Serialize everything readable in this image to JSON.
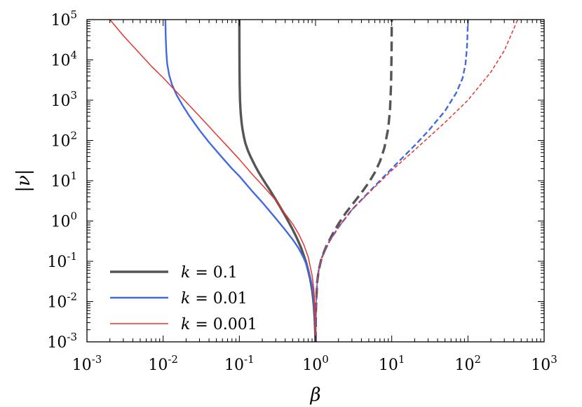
{
  "chart_data": {
    "type": "line",
    "title": "",
    "xlabel": "β",
    "ylabel": "|ν|",
    "xscale": "log",
    "yscale": "log",
    "xlim": [
      0.001,
      1000
    ],
    "ylim": [
      0.001,
      100000
    ],
    "x_ticks": [
      {
        "base": "10",
        "exp": "-3"
      },
      {
        "base": "10",
        "exp": "-2"
      },
      {
        "base": "10",
        "exp": "-1"
      },
      {
        "base": "10",
        "exp": "0"
      },
      {
        "base": "10",
        "exp": "1"
      },
      {
        "base": "10",
        "exp": "2"
      },
      {
        "base": "10",
        "exp": "3"
      }
    ],
    "y_ticks": [
      {
        "base": "10",
        "exp": "-3"
      },
      {
        "base": "10",
        "exp": "-2"
      },
      {
        "base": "10",
        "exp": "-1"
      },
      {
        "base": "10",
        "exp": "0"
      },
      {
        "base": "10",
        "exp": "1"
      },
      {
        "base": "10",
        "exp": "2"
      },
      {
        "base": "10",
        "exp": "3"
      },
      {
        "base": "10",
        "exp": "4"
      },
      {
        "base": "10",
        "exp": "5"
      }
    ],
    "grid": false,
    "legend_position": "bottom-left",
    "series": [
      {
        "name": "k = 0.1",
        "legend": {
          "var": "k",
          "rest": " = 0.1"
        },
        "color": "#555555",
        "solid": {
          "x": [
            0.1,
            0.1002,
            0.1005,
            0.101,
            0.102,
            0.104,
            0.107,
            0.11,
            0.115,
            0.12,
            0.13,
            0.14,
            0.16,
            0.18,
            0.2,
            0.23,
            0.26,
            0.3,
            0.35,
            0.4,
            0.45,
            0.5,
            0.55,
            0.6,
            0.65,
            0.7,
            0.75,
            0.8,
            0.85,
            0.9,
            0.93,
            0.95,
            0.97,
            0.98,
            0.99,
            0.995,
            0.999
          ],
          "y": [
            100000,
            25000,
            6300,
            2500,
            1000,
            500,
            280,
            190,
            120,
            85,
            55,
            40,
            24,
            16,
            11.5,
            7.6,
            5.3,
            3.4,
            2.1,
            1.35,
            0.9,
            0.62,
            0.43,
            0.3,
            0.21,
            0.14,
            0.095,
            0.06,
            0.037,
            0.02,
            0.012,
            0.008,
            0.0045,
            0.003,
            0.0018,
            0.0013,
            0.001
          ]
        },
        "dashed": {
          "x": [
            1.001,
            1.01,
            1.05,
            1.1,
            1.2,
            1.4,
            1.7,
            2,
            2.5,
            3,
            4,
            5,
            6,
            7,
            8,
            9,
            9.5,
            9.8,
            9.95,
            10
          ],
          "y": [
            0.001,
            0.006,
            0.03,
            0.06,
            0.12,
            0.25,
            0.5,
            0.85,
            1.6,
            2.5,
            5,
            9,
            16,
            30,
            65,
            200,
            600,
            2500,
            15000,
            100000
          ]
        }
      },
      {
        "name": "k = 0.01",
        "legend": {
          "var": "k",
          "rest": " = 0.01"
        },
        "color": "#4169e1",
        "solid": {
          "x": [
            0.0107,
            0.0108,
            0.011,
            0.0113,
            0.012,
            0.013,
            0.015,
            0.018,
            0.022,
            0.03,
            0.04,
            0.06,
            0.08,
            0.1,
            0.15,
            0.2,
            0.3,
            0.4,
            0.5,
            0.6,
            0.7,
            0.8,
            0.9,
            0.95,
            0.98,
            0.995,
            0.999
          ],
          "y": [
            100000,
            40000,
            16000,
            8000,
            4200,
            2500,
            1350,
            740,
            410,
            180,
            90,
            37,
            20,
            13,
            5.3,
            2.9,
            1.17,
            0.6,
            0.35,
            0.21,
            0.12,
            0.065,
            0.025,
            0.012,
            0.005,
            0.0022,
            0.001
          ]
        },
        "dashed": {
          "x": [
            1.001,
            1.01,
            1.05,
            1.1,
            1.2,
            1.5,
            2,
            3,
            5,
            10,
            20,
            30,
            50,
            70,
            85,
            93,
            97,
            99,
            100
          ],
          "y": [
            0.001,
            0.006,
            0.03,
            0.06,
            0.12,
            0.3,
            0.7,
            1.9,
            5.2,
            20,
            75,
            170,
            540,
            1500,
            3500,
            8000,
            20000,
            50000,
            100000
          ]
        }
      },
      {
        "name": "k = 0.001",
        "legend": {
          "var": "k",
          "rest": " = 0.001"
        },
        "color": "#e8342f",
        "solid": {
          "x": [
            0.002,
            0.003,
            0.005,
            0.007,
            0.01,
            0.015,
            0.02,
            0.03,
            0.05,
            0.07,
            0.1,
            0.15,
            0.2,
            0.3,
            0.4,
            0.5,
            0.6,
            0.7,
            0.8,
            0.9,
            0.95,
            0.98,
            0.995,
            0.999
          ],
          "y": [
            100000,
            40000,
            14000,
            7000,
            3600,
            1600,
            900,
            400,
            140,
            71,
            34,
            14,
            7.8,
            3.3,
            1.5,
            0.85,
            0.48,
            0.26,
            0.13,
            0.045,
            0.02,
            0.008,
            0.003,
            0.001
          ]
        },
        "dashed": {
          "x": [
            1.001,
            1.01,
            1.05,
            1.1,
            1.2,
            1.5,
            2,
            3,
            5,
            10,
            20,
            50,
            100,
            200,
            300,
            450
          ],
          "y": [
            0.001,
            0.006,
            0.03,
            0.06,
            0.12,
            0.3,
            0.7,
            1.9,
            5,
            18,
            58,
            280,
            1000,
            5000,
            17000,
            100000
          ]
        }
      }
    ]
  }
}
